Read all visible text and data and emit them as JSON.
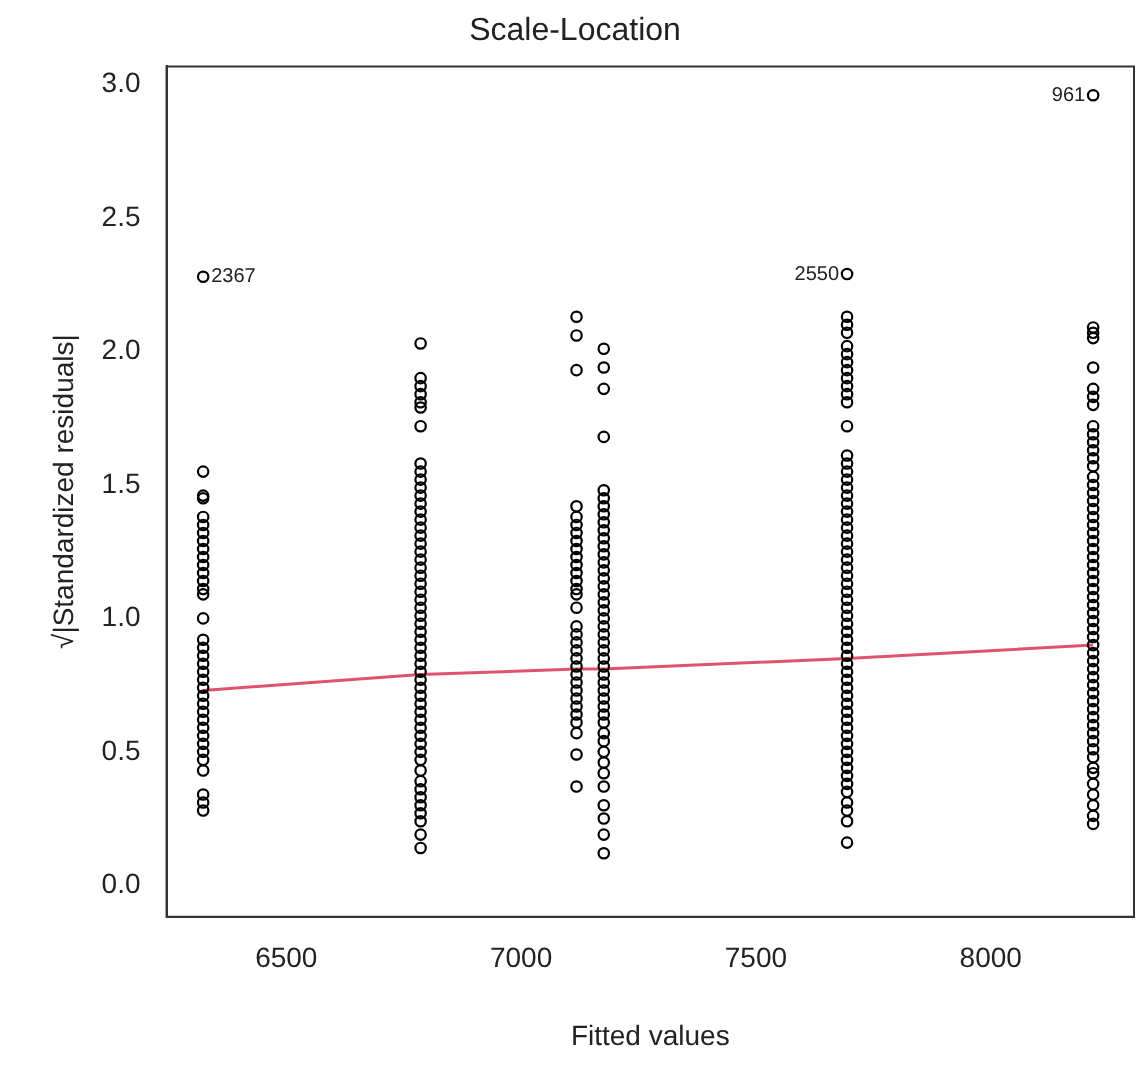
{
  "chart_data": {
    "type": "scatter",
    "title": "Scale-Location",
    "xlabel": "Fitted values",
    "ylabel": "√|Standardized residuals|",
    "marker": "circle",
    "grid": false,
    "xlim": [
      6245,
      8305
    ],
    "xticks": [
      6500,
      7000,
      7500,
      8000
    ],
    "ylim": [
      -0.118,
      3.068
    ],
    "yticks": [
      {
        "value": 0,
        "label": "0.0"
      },
      {
        "value": 0.5,
        "label": "0.5"
      },
      {
        "value": 1,
        "label": "1.0"
      },
      {
        "value": 1.5,
        "label": "1.5"
      },
      {
        "value": 2,
        "label": "2.0"
      },
      {
        "value": 2.5,
        "label": "2.5"
      },
      {
        "value": 3,
        "label": "3.0"
      }
    ],
    "annotations": [
      {
        "text": "2367",
        "x": 6323,
        "y": 2.28
      },
      {
        "text": "2550",
        "x": 7694,
        "y": 2.29
      },
      {
        "text": "961",
        "x": 8218,
        "y": 2.96
      }
    ],
    "series": [
      {
        "color": "#000000",
        "x": [
          6323,
          6323,
          6323,
          6323,
          6323,
          6323,
          6323,
          6323,
          6323,
          6323,
          6323,
          6323,
          6323,
          6323,
          6323,
          6323,
          6323,
          6323,
          6323,
          6323,
          6323,
          6323,
          6323,
          6323,
          6323,
          6323,
          6323,
          6323,
          6323,
          6323,
          6323,
          6323,
          6323,
          6323,
          6323,
          6323
        ],
        "values": [
          2.28,
          1.55,
          1.46,
          1.45,
          1.38,
          1.35,
          1.32,
          1.29,
          1.26,
          1.23,
          1.2,
          1.17,
          1.14,
          1.11,
          1.09,
          1.0,
          0.92,
          0.89,
          0.86,
          0.83,
          0.8,
          0.77,
          0.74,
          0.71,
          0.68,
          0.65,
          0.62,
          0.59,
          0.56,
          0.53,
          0.5,
          0.47,
          0.43,
          0.34,
          0.31,
          0.28
        ]
      },
      {
        "color": "#000000",
        "x": [
          6786,
          6786,
          6786,
          6786,
          6786,
          6786,
          6786,
          6786,
          6786,
          6786,
          6786,
          6786,
          6786,
          6786,
          6786,
          6786,
          6786,
          6786,
          6786,
          6786,
          6786,
          6786,
          6786,
          6786,
          6786,
          6786,
          6786,
          6786,
          6786,
          6786,
          6786,
          6786,
          6786,
          6786,
          6786,
          6786,
          6786,
          6786,
          6786,
          6786,
          6786,
          6786,
          6786,
          6786,
          6786,
          6786,
          6786,
          6786,
          6786,
          6786,
          6786,
          6786,
          6786,
          6786
        ],
        "values": [
          2.03,
          1.9,
          1.87,
          1.84,
          1.81,
          1.79,
          1.72,
          1.58,
          1.55,
          1.52,
          1.49,
          1.46,
          1.43,
          1.4,
          1.37,
          1.34,
          1.31,
          1.28,
          1.25,
          1.22,
          1.19,
          1.16,
          1.13,
          1.1,
          1.07,
          1.04,
          1.01,
          0.98,
          0.95,
          0.92,
          0.89,
          0.86,
          0.83,
          0.8,
          0.77,
          0.74,
          0.71,
          0.68,
          0.65,
          0.62,
          0.59,
          0.56,
          0.53,
          0.5,
          0.47,
          0.43,
          0.39,
          0.36,
          0.33,
          0.3,
          0.27,
          0.24,
          0.19,
          0.14
        ]
      },
      {
        "color": "#000000",
        "x": [
          7118,
          7118,
          7118,
          7118,
          7118,
          7118,
          7118,
          7118,
          7118,
          7118,
          7118,
          7118,
          7118,
          7118,
          7118,
          7118,
          7118,
          7118,
          7118,
          7118,
          7118,
          7118,
          7118,
          7118,
          7118,
          7118,
          7118,
          7118,
          7118,
          7118,
          7118,
          7118
        ],
        "values": [
          2.13,
          2.06,
          1.93,
          1.42,
          1.38,
          1.35,
          1.32,
          1.29,
          1.26,
          1.23,
          1.2,
          1.17,
          1.14,
          1.11,
          1.09,
          1.04,
          0.97,
          0.94,
          0.91,
          0.88,
          0.85,
          0.82,
          0.79,
          0.76,
          0.73,
          0.7,
          0.67,
          0.64,
          0.61,
          0.57,
          0.49,
          0.37
        ]
      },
      {
        "color": "#000000",
        "x": [
          7176,
          7176,
          7176,
          7176,
          7176,
          7176,
          7176,
          7176,
          7176,
          7176,
          7176,
          7176,
          7176,
          7176,
          7176,
          7176,
          7176,
          7176,
          7176,
          7176,
          7176,
          7176,
          7176,
          7176,
          7176,
          7176,
          7176,
          7176,
          7176,
          7176,
          7176,
          7176,
          7176,
          7176,
          7176,
          7176,
          7176,
          7176,
          7176,
          7176,
          7176,
          7176,
          7176,
          7176
        ],
        "values": [
          2.01,
          1.94,
          1.86,
          1.68,
          1.48,
          1.45,
          1.42,
          1.39,
          1.36,
          1.33,
          1.3,
          1.27,
          1.24,
          1.21,
          1.18,
          1.15,
          1.12,
          1.09,
          1.06,
          1.03,
          1.0,
          0.97,
          0.94,
          0.91,
          0.88,
          0.85,
          0.82,
          0.79,
          0.76,
          0.73,
          0.7,
          0.67,
          0.64,
          0.61,
          0.57,
          0.54,
          0.5,
          0.46,
          0.42,
          0.37,
          0.3,
          0.25,
          0.19,
          0.12
        ]
      },
      {
        "color": "#000000",
        "x": [
          7694,
          7694,
          7694,
          7694,
          7694,
          7694,
          7694,
          7694,
          7694,
          7694,
          7694,
          7694,
          7694,
          7694,
          7694,
          7694,
          7694,
          7694,
          7694,
          7694,
          7694,
          7694,
          7694,
          7694,
          7694,
          7694,
          7694,
          7694,
          7694,
          7694,
          7694,
          7694,
          7694,
          7694,
          7694,
          7694,
          7694,
          7694,
          7694,
          7694,
          7694,
          7694,
          7694,
          7694,
          7694,
          7694,
          7694,
          7694,
          7694,
          7694,
          7694,
          7694,
          7694,
          7694,
          7694,
          7694,
          7694,
          7694,
          7694,
          7694
        ],
        "values": [
          2.29,
          2.13,
          2.1,
          2.07,
          2.02,
          1.99,
          1.96,
          1.93,
          1.9,
          1.87,
          1.84,
          1.81,
          1.72,
          1.61,
          1.58,
          1.55,
          1.52,
          1.49,
          1.46,
          1.43,
          1.4,
          1.37,
          1.34,
          1.31,
          1.28,
          1.25,
          1.22,
          1.19,
          1.16,
          1.13,
          1.1,
          1.07,
          1.04,
          1.01,
          0.98,
          0.95,
          0.92,
          0.89,
          0.86,
          0.83,
          0.8,
          0.77,
          0.74,
          0.71,
          0.68,
          0.65,
          0.62,
          0.59,
          0.56,
          0.53,
          0.5,
          0.47,
          0.44,
          0.41,
          0.38,
          0.35,
          0.31,
          0.28,
          0.24,
          0.16
        ]
      },
      {
        "color": "#000000",
        "x": [
          8218,
          8218,
          8218,
          8218,
          8218,
          8218,
          8218,
          8218,
          8218,
          8218,
          8218,
          8218,
          8218,
          8218,
          8218,
          8218,
          8218,
          8218,
          8218,
          8218,
          8218,
          8218,
          8218,
          8218,
          8218,
          8218,
          8218,
          8218,
          8218,
          8218,
          8218,
          8218,
          8218,
          8218,
          8218,
          8218,
          8218,
          8218,
          8218,
          8218,
          8218,
          8218,
          8218,
          8218,
          8218,
          8218,
          8218,
          8218,
          8218,
          8218,
          8218,
          8218,
          8218,
          8218,
          8218,
          8218,
          8218
        ],
        "values": [
          2.96,
          2.09,
          2.07,
          2.05,
          1.94,
          1.86,
          1.83,
          1.8,
          1.72,
          1.69,
          1.66,
          1.63,
          1.6,
          1.57,
          1.53,
          1.5,
          1.47,
          1.44,
          1.41,
          1.38,
          1.35,
          1.32,
          1.29,
          1.26,
          1.23,
          1.2,
          1.17,
          1.14,
          1.11,
          1.08,
          1.05,
          1.02,
          0.99,
          0.96,
          0.93,
          0.9,
          0.87,
          0.84,
          0.81,
          0.78,
          0.75,
          0.72,
          0.69,
          0.66,
          0.63,
          0.6,
          0.57,
          0.54,
          0.51,
          0.48,
          0.44,
          0.42,
          0.38,
          0.34,
          0.3,
          0.26,
          0.23
        ]
      },
      {
        "type": "line",
        "marker": "none",
        "color": "#df536b",
        "x": [
          6323,
          6786,
          7118,
          7176,
          7694,
          8218
        ],
        "values": [
          0.73,
          0.79,
          0.81,
          0.81,
          0.85,
          0.9
        ]
      }
    ]
  }
}
